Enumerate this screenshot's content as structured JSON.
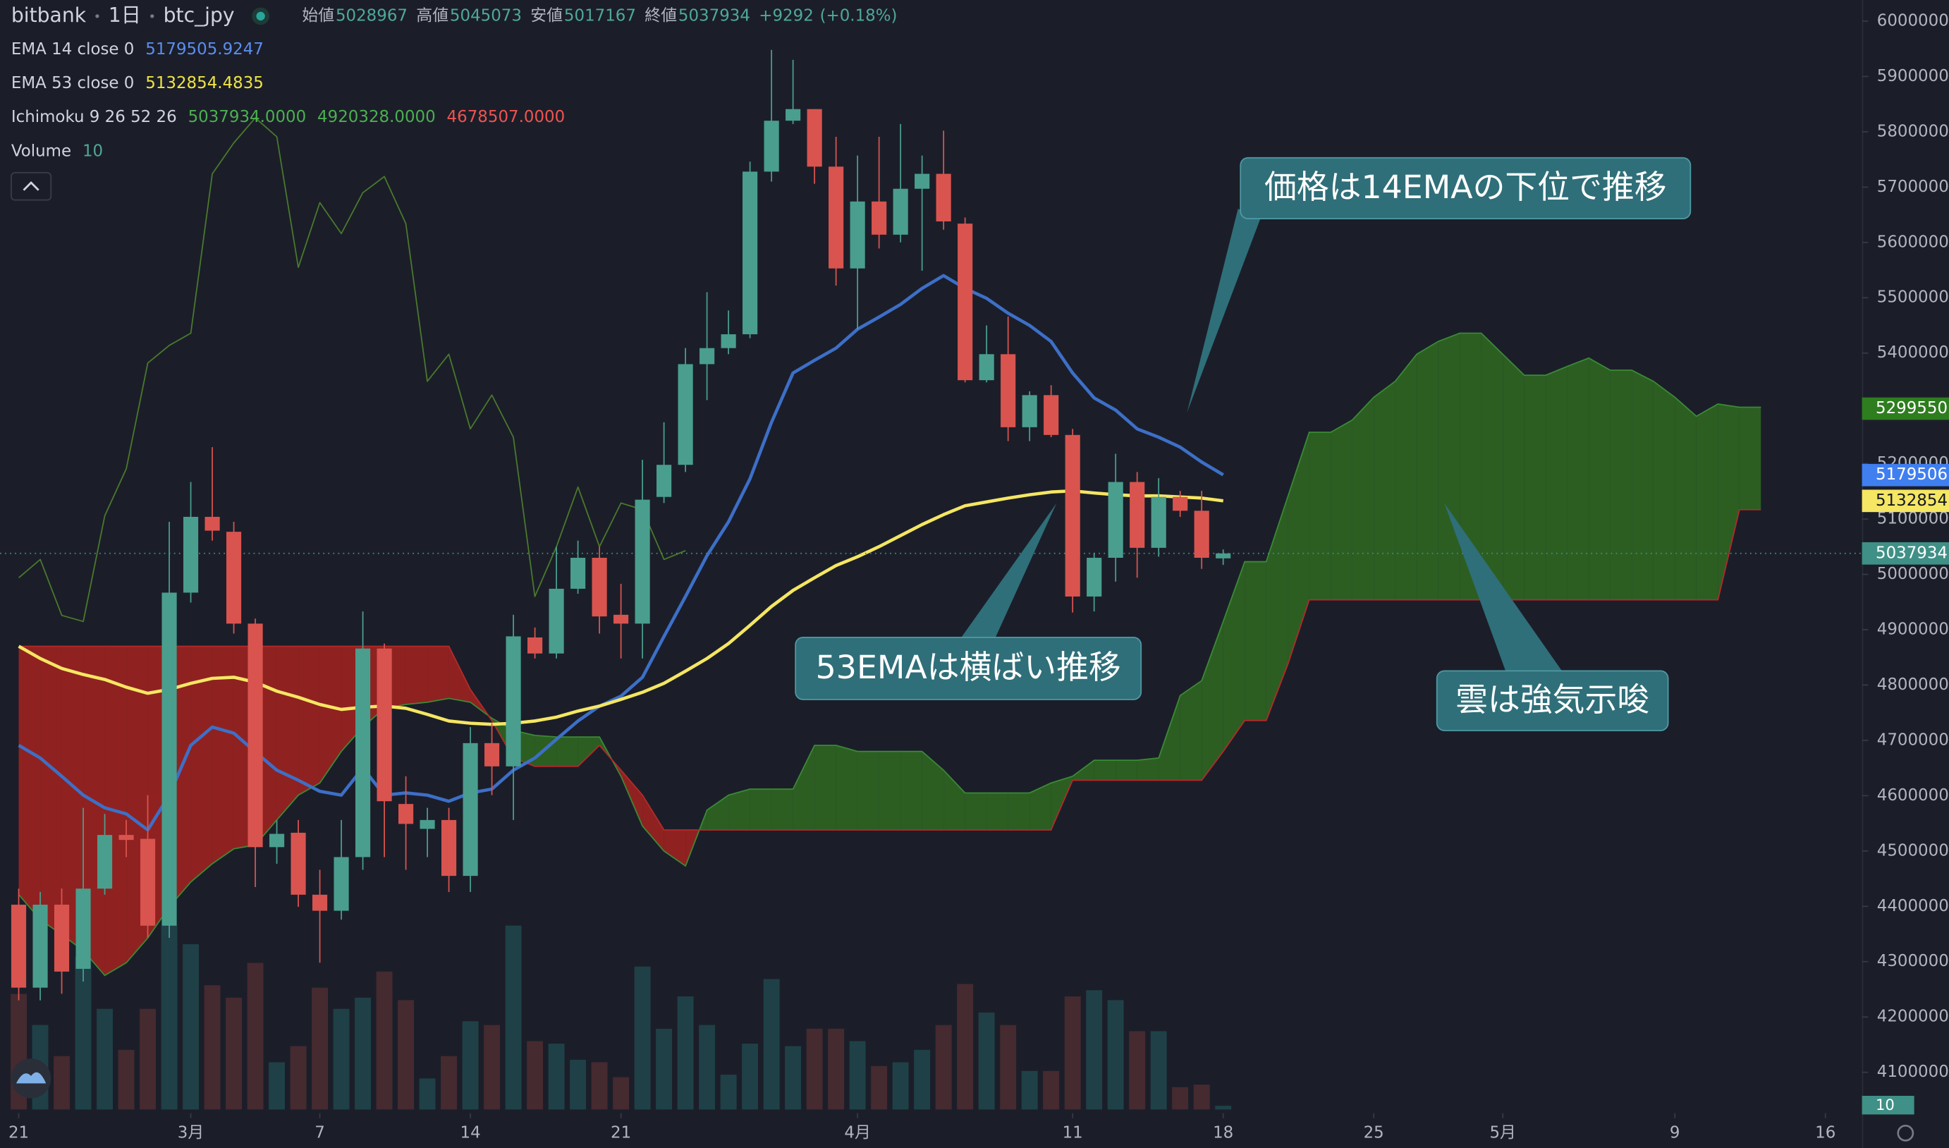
{
  "chart_data": {
    "type": "candlestick",
    "header": {
      "exchange": "bitbank",
      "interval": "1日",
      "symbol": "btc_jpy",
      "ohlc": [
        {
          "label": "始値",
          "value": 5028967
        },
        {
          "label": "高値",
          "value": 5045073
        },
        {
          "label": "安値",
          "value": 5017167
        },
        {
          "label": "終値",
          "value": 5037934
        }
      ],
      "change": "+9292",
      "change_pct": "(+0.18%)"
    },
    "legend": [
      {
        "name": "EMA 14 close 0",
        "readouts": [
          {
            "text": "5179505.9247",
            "color": "#5b8def"
          }
        ]
      },
      {
        "name": "EMA 53 close 0",
        "readouts": [
          {
            "text": "5132854.4835",
            "color": "#f0e442"
          }
        ]
      },
      {
        "name": "Ichimoku 9 26 52 26",
        "readouts": [
          {
            "text": "5037934.0000",
            "color": "#4caf50"
          },
          {
            "text": "4920328.0000",
            "color": "#4caf50"
          },
          {
            "text": "4678507.0000",
            "color": "#ef5350"
          }
        ]
      },
      {
        "name": "Volume",
        "readouts": [
          {
            "text": "10",
            "color": "#4fa89a"
          }
        ]
      }
    ],
    "xlim": [
      -0.87,
      85.7
    ],
    "xticks": [
      {
        "value": 0,
        "label": "21"
      },
      {
        "value": 8,
        "label": "3月"
      },
      {
        "value": 14,
        "label": "7"
      },
      {
        "value": 21,
        "label": "14"
      },
      {
        "value": 28,
        "label": "21"
      },
      {
        "value": 39,
        "label": "4月"
      },
      {
        "value": 49,
        "label": "11"
      },
      {
        "value": 56,
        "label": "18"
      },
      {
        "value": 63,
        "label": "25"
      },
      {
        "value": 69,
        "label": "5月"
      },
      {
        "value": 77,
        "label": "9"
      },
      {
        "value": 84,
        "label": "16"
      }
    ],
    "ylim": [
      4032800,
      6038200
    ],
    "yticks": [
      6000000,
      5900000,
      5800000,
      5700000,
      5600000,
      5500000,
      5400000,
      5300000,
      5200000,
      5100000,
      5000000,
      4900000,
      4800000,
      4700000,
      4600000,
      4500000,
      4400000,
      4300000,
      4200000,
      4100000
    ],
    "candles": {
      "up_color": "#4a9e8e",
      "down_color": "#d9544f",
      "open": [
        4403000,
        4253000,
        4403000,
        4287000,
        4432000,
        4529000,
        4522000,
        4365000,
        4967000,
        5104000,
        5077000,
        4911000,
        4507000,
        4533000,
        4421000,
        4392000,
        4489000,
        4866000,
        4585000,
        4540000,
        4556000,
        4455000,
        4695000,
        4653000,
        4886000,
        4857000,
        4974000,
        5030000,
        4927000,
        4911000,
        5140000,
        5198000,
        5380000,
        5409000,
        5434000,
        5728000,
        5820000,
        5841000,
        5737000,
        5553000,
        5674000,
        5614000,
        5697000,
        5724000,
        5634000,
        5351000,
        5398000,
        5266000,
        5324000,
        5252000,
        4960000,
        5030000,
        5167000,
        5048000,
        5140000,
        5115000,
        5028967
      ],
      "high": [
        4432000,
        4426000,
        4432000,
        4578000,
        4567000,
        4556000,
        4601000,
        5095000,
        5167000,
        5230000,
        5095000,
        4920000,
        4556000,
        4556000,
        4466000,
        4556000,
        4933000,
        4875000,
        4635000,
        4578000,
        4578000,
        4724000,
        4731000,
        4927000,
        4904000,
        5050000,
        5061000,
        5050000,
        4983000,
        5207000,
        5275000,
        5409000,
        5510000,
        5477000,
        5746000,
        5948000,
        5930000,
        5841000,
        5791000,
        5757000,
        5791000,
        5814000,
        5757000,
        5802000,
        5645000,
        5450000,
        5466000,
        5331000,
        5342000,
        5263000,
        5039000,
        5218000,
        5185000,
        5174000,
        5151000,
        5151000,
        5045073
      ],
      "low": [
        4230000,
        4230000,
        4242000,
        4264000,
        4421000,
        4489000,
        4343000,
        4343000,
        4949000,
        5061000,
        4893000,
        4435000,
        4477000,
        4399000,
        4298000,
        4376000,
        4466000,
        4489000,
        4466000,
        4489000,
        4426000,
        4426000,
        4601000,
        4556000,
        4848000,
        4848000,
        4965000,
        4893000,
        4848000,
        4848000,
        5129000,
        5185000,
        5315000,
        5398000,
        5427000,
        5710000,
        5814000,
        5706000,
        5522000,
        5443000,
        5589000,
        5600000,
        5549000,
        5623000,
        5347000,
        5347000,
        5241000,
        5241000,
        5248000,
        4931000,
        4933000,
        4987000,
        4994000,
        5032000,
        5104000,
        5010000,
        5017167
      ],
      "close": [
        4253000,
        4403000,
        4282000,
        4432000,
        4529000,
        4520000,
        4365000,
        4967000,
        5104000,
        5079000,
        4911000,
        4507000,
        4531000,
        4421000,
        4392000,
        4489000,
        4866000,
        4590000,
        4549000,
        4556000,
        4455000,
        4695000,
        4653000,
        4888000,
        4857000,
        4974000,
        5030000,
        4924000,
        4911000,
        5135000,
        5198000,
        5380000,
        5409000,
        5434000,
        5728000,
        5820000,
        5841000,
        5737000,
        5553000,
        5674000,
        5614000,
        5697000,
        5724000,
        5638000,
        5351000,
        5398000,
        5266000,
        5324000,
        5252000,
        4960000,
        5030000,
        5167000,
        5048000,
        5140000,
        5115000,
        5030000,
        5037934
      ]
    },
    "volume": {
      "ylim": [
        0,
        300
      ],
      "up_color": "#1f4047",
      "down_color": "#452a30",
      "values": [
        93,
        68,
        43,
        123,
        81,
        48,
        81,
        148,
        133,
        100,
        90,
        118,
        38,
        51,
        98,
        81,
        90,
        111,
        88,
        25,
        43,
        71,
        68,
        148,
        55,
        53,
        40,
        38,
        26,
        115,
        65,
        91,
        68,
        28,
        53,
        105,
        51,
        65,
        65,
        55,
        35,
        38,
        48,
        68,
        101,
        78,
        68,
        31,
        31,
        91,
        96,
        88,
        63,
        63,
        18,
        20,
        3
      ]
    },
    "lines": [
      {
        "color": "#3d6fc7",
        "width": 2.6,
        "values": [
          4691000,
          4668000,
          4635000,
          4601000,
          4578000,
          4567000,
          4538000,
          4601000,
          4691000,
          4724000,
          4713000,
          4679000,
          4646000,
          4628000,
          4608000,
          4601000,
          4650000,
          4601000,
          4605000,
          4601000,
          4590000,
          4605000,
          4612000,
          4646000,
          4668000,
          4702000,
          4735000,
          4762000,
          4780000,
          4814000,
          4888000,
          4960000,
          5034000,
          5095000,
          5173000,
          5275000,
          5364000,
          5387000,
          5409000,
          5443000,
          5465000,
          5488000,
          5517000,
          5540000,
          5517000,
          5499000,
          5472000,
          5450000,
          5421000,
          5364000,
          5319000,
          5297000,
          5263000,
          5248000,
          5230000,
          5203000,
          5180000
        ]
      },
      {
        "color": "#f5e663",
        "width": 2.6,
        "values": [
          4870000,
          4848000,
          4830000,
          4819000,
          4810000,
          4796000,
          4785000,
          4792000,
          4803000,
          4812000,
          4814000,
          4805000,
          4789000,
          4778000,
          4765000,
          4756000,
          4760000,
          4762000,
          4758000,
          4747000,
          4735000,
          4731000,
          4729000,
          4731000,
          4735000,
          4742000,
          4753000,
          4762000,
          4774000,
          4787000,
          4803000,
          4825000,
          4848000,
          4875000,
          4908000,
          4942000,
          4971000,
          4994000,
          5016000,
          5032000,
          5050000,
          5070000,
          5090000,
          5108000,
          5124000,
          5131000,
          5138000,
          5144000,
          5149000,
          5151000,
          5147000,
          5144000,
          5142000,
          5142000,
          5140000,
          5138000,
          5133000
        ]
      },
      {
        "color": "#4a7a2c",
        "width": 1,
        "values": [
          4994000,
          5027000,
          4926000,
          4915000,
          5106000,
          5191000,
          5382000,
          5414000,
          5436000,
          5724000,
          5780000,
          5825000,
          5791000,
          5555000,
          5672000,
          5616000,
          5690000,
          5719000,
          5634000,
          5349000,
          5398000,
          5263000,
          5324000,
          5248000,
          4960000,
          5050000,
          5158000,
          5050000,
          5129000,
          5117000,
          5027000,
          5043000
        ]
      }
    ],
    "cloud": {
      "up_color": "#2c5e22",
      "down_color": "#8f2220",
      "line_a_color": "#3b8a36",
      "line_b_color": "#b52a2a",
      "span_a": [
        4421000,
        4376000,
        4349000,
        4320000,
        4275000,
        4298000,
        4343000,
        4399000,
        4444000,
        4477000,
        4504000,
        4511000,
        4556000,
        4601000,
        4623000,
        4680000,
        4724000,
        4758000,
        4765000,
        4769000,
        4776000,
        4769000,
        4740000,
        4718000,
        4709000,
        4706000,
        4706000,
        4706000,
        4635000,
        4545000,
        4500000,
        4473000,
        4574000,
        4601000,
        4612000,
        4612000,
        4612000,
        4691000,
        4691000,
        4680000,
        4680000,
        4680000,
        4680000,
        4646000,
        4605000,
        4605000,
        4605000,
        4605000,
        4623000,
        4635000,
        4664000,
        4664000,
        4664000,
        4668000,
        4781000,
        4808000,
        4915000,
        5023000,
        5023000,
        5140000,
        5257000,
        5257000,
        5279000,
        5320000,
        5349000,
        5398000,
        5421000,
        5436000,
        5436000,
        5398000,
        5360000,
        5360000,
        5376000,
        5391000,
        5369000,
        5369000,
        5349000,
        5320000,
        5286000,
        5308000,
        5302000,
        5302000
      ],
      "span_b": [
        4870000,
        4870000,
        4870000,
        4870000,
        4870000,
        4870000,
        4870000,
        4870000,
        4870000,
        4870000,
        4870000,
        4870000,
        4870000,
        4870000,
        4870000,
        4870000,
        4870000,
        4870000,
        4870000,
        4870000,
        4870000,
        4792000,
        4736000,
        4668000,
        4653000,
        4653000,
        4653000,
        4691000,
        4646000,
        4601000,
        4538000,
        4538000,
        4538000,
        4538000,
        4538000,
        4538000,
        4538000,
        4538000,
        4538000,
        4538000,
        4538000,
        4538000,
        4538000,
        4538000,
        4538000,
        4538000,
        4538000,
        4538000,
        4538000,
        4628000,
        4628000,
        4628000,
        4628000,
        4628000,
        4628000,
        4628000,
        4680000,
        4736000,
        4736000,
        4837000,
        4954000,
        4954000,
        4954000,
        4954000,
        4954000,
        4954000,
        4954000,
        4954000,
        4954000,
        4954000,
        4954000,
        4954000,
        4954000,
        4954000,
        4954000,
        4954000,
        4954000,
        4954000,
        4954000,
        4954000,
        5117000,
        5117000
      ]
    },
    "price_badges": [
      {
        "value": 5299550,
        "color": "#2e7d1e"
      },
      {
        "value": 5179506,
        "color": "#3f7ff0"
      },
      {
        "value": 5132854,
        "color": "#f5e663"
      },
      {
        "value": 5037934,
        "color": "#3f9086"
      }
    ],
    "annotations": [
      {
        "text": "価格は14EMAの下位で推移"
      },
      {
        "text": "53EMAは横ばい推移"
      },
      {
        "text": "雲は強気示唆"
      }
    ]
  }
}
